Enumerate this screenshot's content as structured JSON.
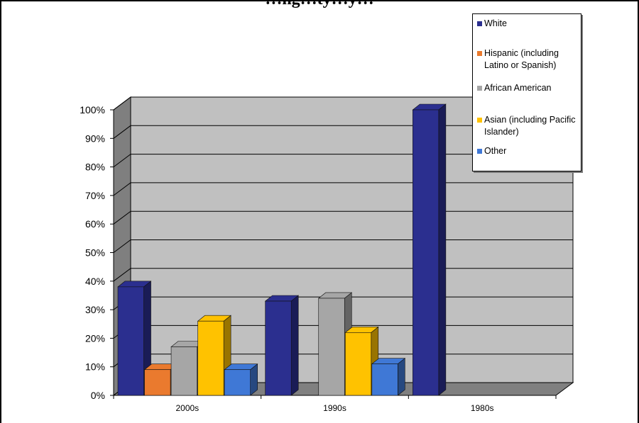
{
  "chart_data": {
    "type": "bar",
    "title": "…ng…ty…y…",
    "categories": [
      "2000s",
      "1990s",
      "1980s"
    ],
    "series": [
      {
        "name": "White",
        "values": [
          38,
          33,
          100
        ],
        "color": "#2b2f8f"
      },
      {
        "name": "Hispanic (including Latino or Spanish)",
        "values": [
          9,
          null,
          null
        ],
        "color": "#ea7a2e"
      },
      {
        "name": "African American",
        "values": [
          17,
          34,
          null
        ],
        "color": "#a6a6a6"
      },
      {
        "name": "Asian (including Pacific Islander)",
        "values": [
          26,
          22,
          null
        ],
        "color": "#ffc200"
      },
      {
        "name": "Other",
        "values": [
          9,
          11,
          null
        ],
        "color": "#3f78d6"
      }
    ],
    "y_ticks": [
      "0%",
      "10%",
      "20%",
      "30%",
      "40%",
      "50%",
      "60%",
      "70%",
      "80%",
      "90%",
      "100%"
    ],
    "ylim": [
      0,
      100
    ],
    "grid": true,
    "legend_position": "top-right",
    "style": "3d-column"
  }
}
